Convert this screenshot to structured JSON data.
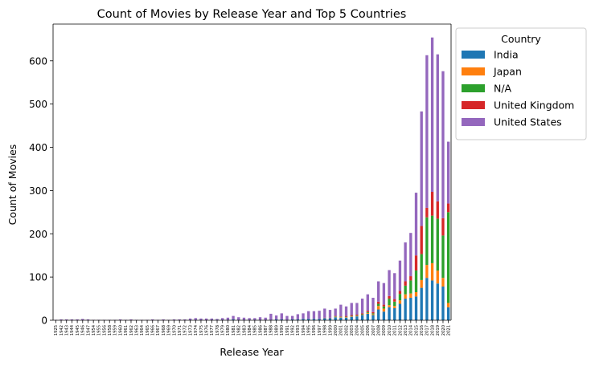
{
  "chart_data": {
    "type": "bar",
    "stacked": true,
    "title": "Count of Movies by Release Year and Top 5 Countries",
    "xlabel": "Release Year",
    "ylabel": "Count of Movies",
    "ylim": [
      0,
      685
    ],
    "yticks": [
      0,
      100,
      200,
      300,
      400,
      500,
      600
    ],
    "grid": false,
    "legend_placement": "outside-right-top",
    "legend_title": "Country",
    "categories": [
      "1925",
      "1942",
      "1943",
      "1944",
      "1945",
      "1946",
      "1947",
      "1954",
      "1955",
      "1956",
      "1958",
      "1959",
      "1960",
      "1961",
      "1962",
      "1963",
      "1964",
      "1965",
      "1966",
      "1967",
      "1968",
      "1969",
      "1970",
      "1971",
      "1972",
      "1973",
      "1974",
      "1975",
      "1976",
      "1977",
      "1978",
      "1979",
      "1980",
      "1981",
      "1982",
      "1983",
      "1984",
      "1985",
      "1986",
      "1987",
      "1988",
      "1989",
      "1990",
      "1991",
      "1992",
      "1993",
      "1994",
      "1995",
      "1996",
      "1997",
      "1998",
      "1999",
      "2000",
      "2001",
      "2002",
      "2003",
      "2004",
      "2005",
      "2006",
      "2007",
      "2008",
      "2009",
      "2010",
      "2011",
      "2012",
      "2013",
      "2014",
      "2015",
      "2016",
      "2017",
      "2018",
      "2019",
      "2020",
      "2021"
    ],
    "series": [
      {
        "name": "India",
        "color": "#1f77b4",
        "values": [
          0,
          0,
          0,
          0,
          0,
          0,
          0,
          0,
          0,
          0,
          0,
          0,
          0,
          0,
          0,
          0,
          0,
          0,
          0,
          0,
          0,
          0,
          0,
          0,
          0,
          1,
          1,
          1,
          0,
          1,
          1,
          1,
          1,
          2,
          1,
          1,
          1,
          1,
          1,
          1,
          1,
          2,
          2,
          1,
          2,
          2,
          3,
          3,
          3,
          3,
          5,
          5,
          7,
          6,
          6,
          8,
          9,
          12,
          15,
          12,
          25,
          20,
          30,
          28,
          38,
          50,
          52,
          55,
          75,
          98,
          92,
          85,
          78,
          30
        ]
      },
      {
        "name": "Japan",
        "color": "#ff7f0e",
        "values": [
          0,
          0,
          0,
          0,
          0,
          0,
          0,
          0,
          0,
          0,
          0,
          0,
          0,
          0,
          0,
          0,
          0,
          0,
          0,
          0,
          0,
          0,
          0,
          0,
          0,
          0,
          0,
          0,
          0,
          0,
          0,
          0,
          0,
          0,
          0,
          0,
          0,
          0,
          0,
          0,
          0,
          0,
          0,
          0,
          0,
          0,
          0,
          0,
          0,
          0,
          0,
          0,
          1,
          1,
          1,
          1,
          1,
          1,
          2,
          2,
          8,
          7,
          5,
          5,
          8,
          10,
          10,
          10,
          18,
          30,
          40,
          30,
          20,
          10
        ]
      },
      {
        "name": "N/A",
        "color": "#2ca02c",
        "values": [
          0,
          0,
          0,
          0,
          0,
          0,
          0,
          0,
          0,
          0,
          0,
          0,
          0,
          0,
          0,
          0,
          0,
          0,
          0,
          0,
          0,
          0,
          0,
          0,
          0,
          0,
          0,
          0,
          0,
          0,
          0,
          0,
          0,
          0,
          0,
          0,
          0,
          0,
          0,
          0,
          0,
          0,
          0,
          0,
          0,
          0,
          0,
          0,
          0,
          0,
          0,
          0,
          1,
          1,
          1,
          1,
          1,
          1,
          2,
          2,
          5,
          5,
          15,
          10,
          15,
          20,
          30,
          50,
          60,
          110,
          110,
          120,
          98,
          210
        ]
      },
      {
        "name": "United Kingdom",
        "color": "#d62728",
        "values": [
          0,
          0,
          0,
          0,
          0,
          0,
          0,
          0,
          0,
          0,
          0,
          0,
          0,
          0,
          0,
          0,
          0,
          0,
          0,
          0,
          0,
          0,
          0,
          0,
          0,
          0,
          0,
          0,
          0,
          0,
          0,
          0,
          0,
          0,
          0,
          0,
          0,
          0,
          0,
          0,
          0,
          0,
          0,
          0,
          0,
          0,
          0,
          0,
          0,
          0,
          1,
          1,
          1,
          1,
          2,
          2,
          2,
          2,
          3,
          3,
          5,
          4,
          6,
          6,
          7,
          10,
          10,
          35,
          65,
          22,
          55,
          40,
          40,
          20
        ]
      },
      {
        "name": "United States",
        "color": "#9467bd",
        "values": [
          1,
          2,
          2,
          2,
          2,
          3,
          2,
          1,
          1,
          1,
          1,
          1,
          2,
          1,
          2,
          1,
          1,
          1,
          2,
          1,
          2,
          1,
          2,
          2,
          2,
          3,
          4,
          3,
          4,
          3,
          2,
          4,
          5,
          8,
          6,
          5,
          4,
          4,
          6,
          5,
          14,
          9,
          14,
          9,
          8,
          12,
          13,
          18,
          18,
          19,
          21,
          18,
          17,
          27,
          22,
          28,
          27,
          34,
          38,
          33,
          47,
          50,
          60,
          60,
          70,
          90,
          100,
          145,
          265,
          353,
          357,
          340,
          340,
          143
        ]
      }
    ]
  }
}
